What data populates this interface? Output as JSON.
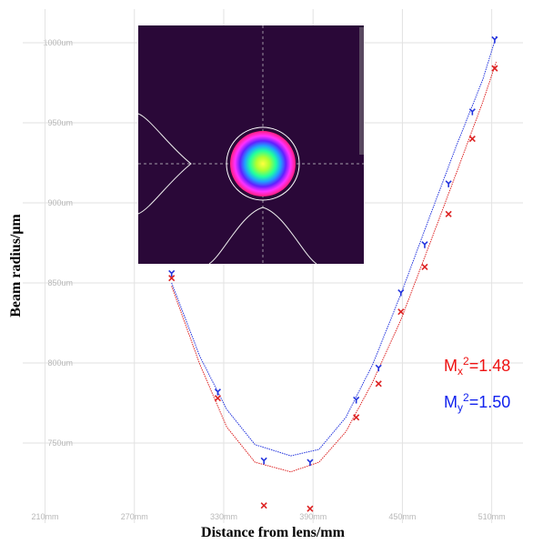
{
  "chart_data": {
    "type": "scatter",
    "xlabel": "Distance from lens/mm",
    "ylabel": "Beam radius/μm",
    "xlim": [
      195,
      531
    ],
    "ylim": [
      700,
      1021
    ],
    "xticks": [
      {
        "value": 210,
        "label": "210mm"
      },
      {
        "value": 270,
        "label": "270mm"
      },
      {
        "value": 330,
        "label": "330mm"
      },
      {
        "value": 390,
        "label": "390mm"
      },
      {
        "value": 450,
        "label": "450mm"
      },
      {
        "value": 510,
        "label": "510mm"
      }
    ],
    "yticks": [
      {
        "value": 750,
        "label": "750um"
      },
      {
        "value": 800,
        "label": "800um"
      },
      {
        "value": 850,
        "label": "850um"
      },
      {
        "value": 900,
        "label": "900um"
      },
      {
        "value": 950,
        "label": "950um"
      },
      {
        "value": 1000,
        "label": "1000um"
      }
    ],
    "grid": true,
    "series": [
      {
        "color": "#2233dd",
        "marker": "Y",
        "x": [
          295,
          326,
          357,
          388,
          419,
          434,
          449,
          465,
          481,
          497,
          512
        ],
        "values": [
          856,
          782,
          739,
          738,
          777,
          797,
          844,
          874,
          912,
          957,
          1002
        ]
      },
      {
        "color": "#dd2222",
        "marker": "x",
        "x": [
          295,
          326,
          357,
          388,
          419,
          434,
          449,
          465,
          481,
          497,
          512
        ],
        "values": [
          853,
          778,
          711,
          709,
          766,
          787,
          832,
          860,
          893,
          940,
          984
        ]
      }
    ],
    "fits": [
      {
        "color": "#2233dd",
        "x": [
          295,
          314,
          332,
          351,
          375,
          394,
          412,
          430,
          449,
          467,
          486,
          504,
          513
        ],
        "values": [
          850,
          804,
          771,
          749,
          742,
          746,
          766,
          799,
          843,
          888,
          935,
          977,
          1004
        ]
      },
      {
        "color": "#dd2222",
        "x": [
          295,
          314,
          332,
          351,
          375,
          394,
          412,
          430,
          449,
          467,
          486,
          504,
          513
        ],
        "values": [
          848,
          799,
          760,
          738,
          732,
          738,
          757,
          788,
          827,
          871,
          918,
          963,
          988
        ]
      }
    ],
    "annotations": [
      {
        "base": "M",
        "sub": "x",
        "sup": "2",
        "text": "=1.48",
        "color": "#ee1111"
      },
      {
        "base": "M",
        "sub": "y",
        "sup": "2",
        "text": "=1.50",
        "color": "#1122ee"
      }
    ]
  }
}
